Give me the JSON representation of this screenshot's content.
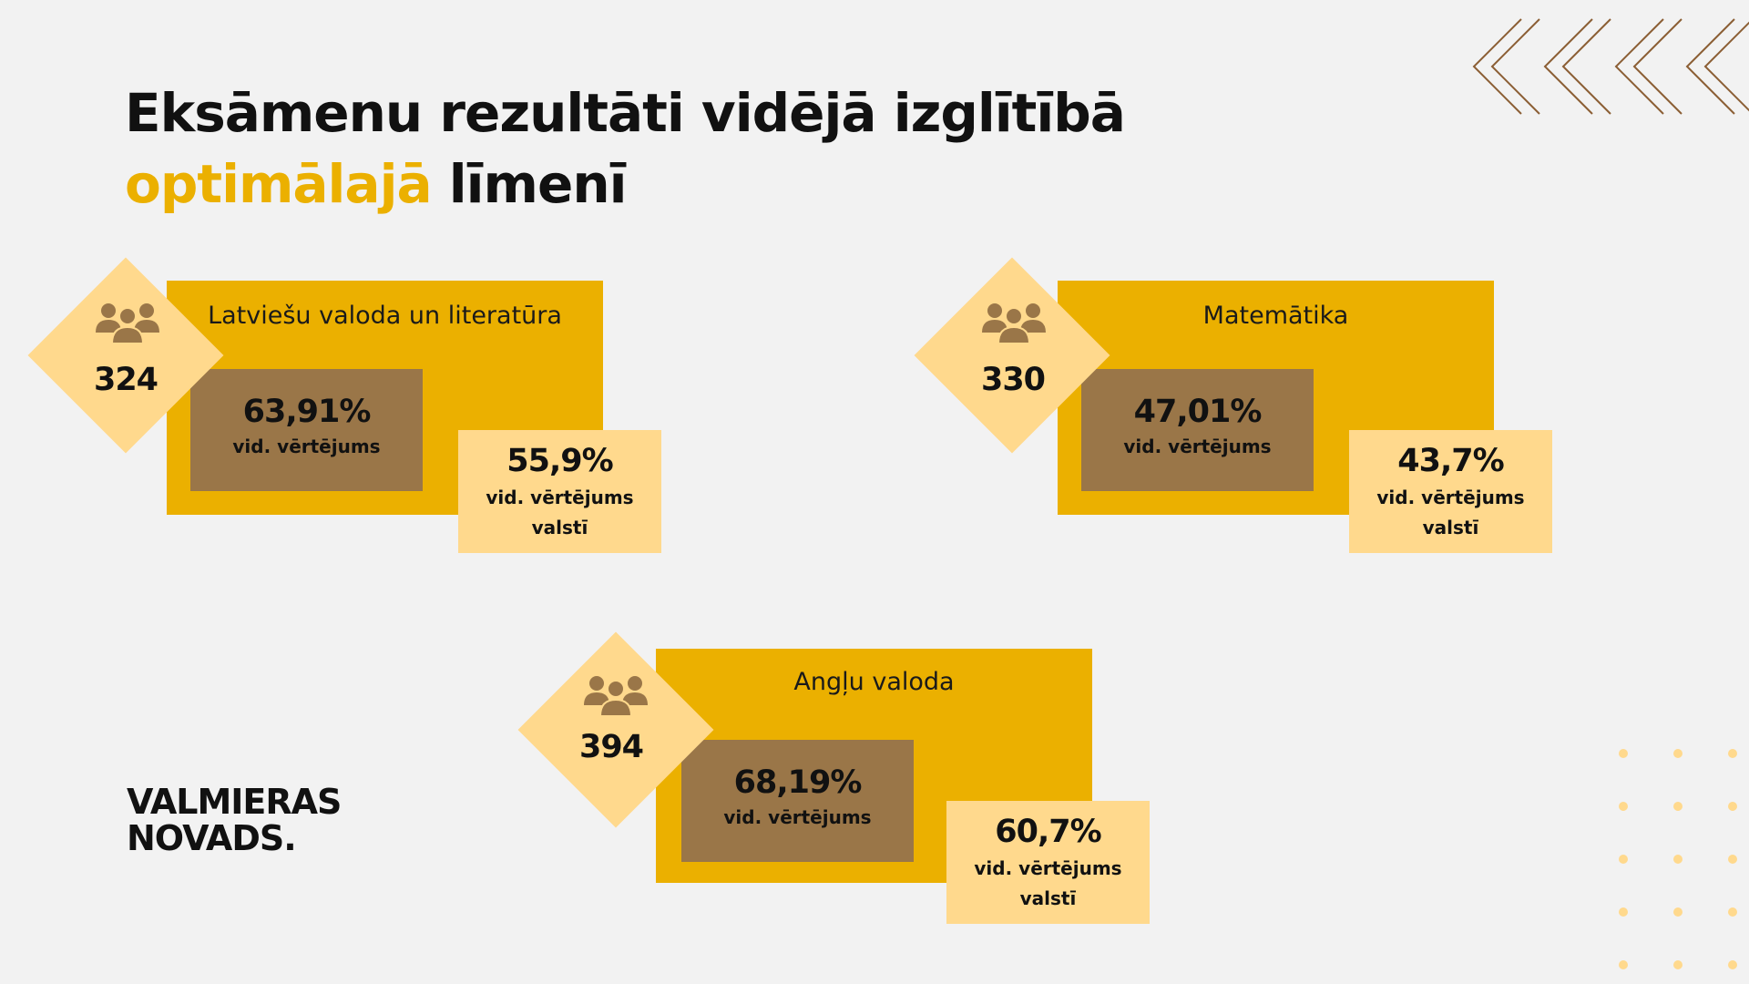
{
  "title": {
    "line1": "Eksāmenu rezultāti vidējā izglītībā",
    "line2_accent": "optimālajā",
    "line2_rest": "līmenī"
  },
  "cards": [
    {
      "subject": "Latviešu valoda un literatūra",
      "count": "324",
      "avg_value": "63,91%",
      "avg_label": "vid. vērtējums",
      "national_value": "55,9%",
      "national_label_1": "vid. vērtējums",
      "national_label_2": "valstī"
    },
    {
      "subject": "Matemātika",
      "count": "330",
      "avg_value": "47,01%",
      "avg_label": "vid. vērtējums",
      "national_value": "43,7%",
      "national_label_1": "vid. vērtējums",
      "national_label_2": "valstī"
    },
    {
      "subject": "Angļu valoda",
      "count": "394",
      "avg_value": "68,19%",
      "avg_label": "vid. vērtējums",
      "national_value": "60,7%",
      "national_label_1": "vid. vērtējums",
      "national_label_2": "valstī"
    }
  ],
  "logo": {
    "line1": "VALMIERAS",
    "line2": "NOVADS."
  },
  "colors": {
    "background": "#f2f2f2",
    "accent_yellow": "#ebb000",
    "brown": "#9a7648",
    "light_yellow": "#ffd98d",
    "chevron_brown": "#8b5e34",
    "dot_yellow": "#ffd98d"
  },
  "icons": {
    "people": "people-group-icon",
    "chevrons": "chevron-left-icon",
    "dots": "dot-grid-decoration"
  }
}
